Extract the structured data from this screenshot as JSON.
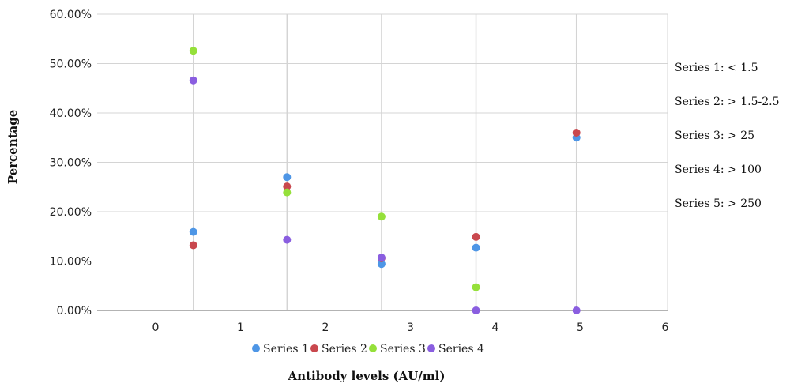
{
  "chart_data": {
    "type": "scatter",
    "xlabel": "Antibody levels (AU/ml)",
    "ylabel": "Percentage",
    "xlim": [
      -0.7,
      6
    ],
    "ylim": [
      0,
      0.6
    ],
    "x_ticks": [
      "0",
      "1",
      "2",
      "3",
      "4",
      "5",
      "6"
    ],
    "y_ticks": [
      "0.00%",
      "10.00%",
      "20.00%",
      "30.00%",
      "40.00%",
      "50.00%",
      "60.00%"
    ],
    "vertical_gridlines_at_x": [
      0.43,
      1.53,
      2.64,
      3.75,
      4.93
    ],
    "series": [
      {
        "name": "Series 1",
        "color": "#4e96e6",
        "points": [
          [
            0.43,
            0.159
          ],
          [
            1.53,
            0.27
          ],
          [
            2.64,
            0.094
          ],
          [
            3.75,
            0.127
          ],
          [
            4.93,
            0.35
          ]
        ]
      },
      {
        "name": "Series 2",
        "color": "#c9484e",
        "points": [
          [
            0.43,
            0.132
          ],
          [
            1.53,
            0.251
          ],
          [
            2.64,
            0.106
          ],
          [
            3.75,
            0.149
          ],
          [
            4.93,
            0.36
          ]
        ]
      },
      {
        "name": "Series 3",
        "color": "#95e03a",
        "points": [
          [
            0.43,
            0.526
          ],
          [
            1.53,
            0.239
          ],
          [
            2.64,
            0.19
          ],
          [
            3.75,
            0.047
          ]
        ]
      },
      {
        "name": "Series 4",
        "color": "#8a5ee0",
        "points": [
          [
            0.43,
            0.466
          ],
          [
            1.53,
            0.143
          ],
          [
            2.64,
            0.107
          ],
          [
            3.75,
            0.0
          ],
          [
            4.93,
            0.0
          ]
        ]
      }
    ],
    "legend_position": "bottom",
    "annotations": [
      "Series 1: < 1.5",
      "Series 2: > 1.5-2.5",
      "Series 3: > 25",
      "Series 4: > 100",
      "Series 5: > 250"
    ]
  }
}
